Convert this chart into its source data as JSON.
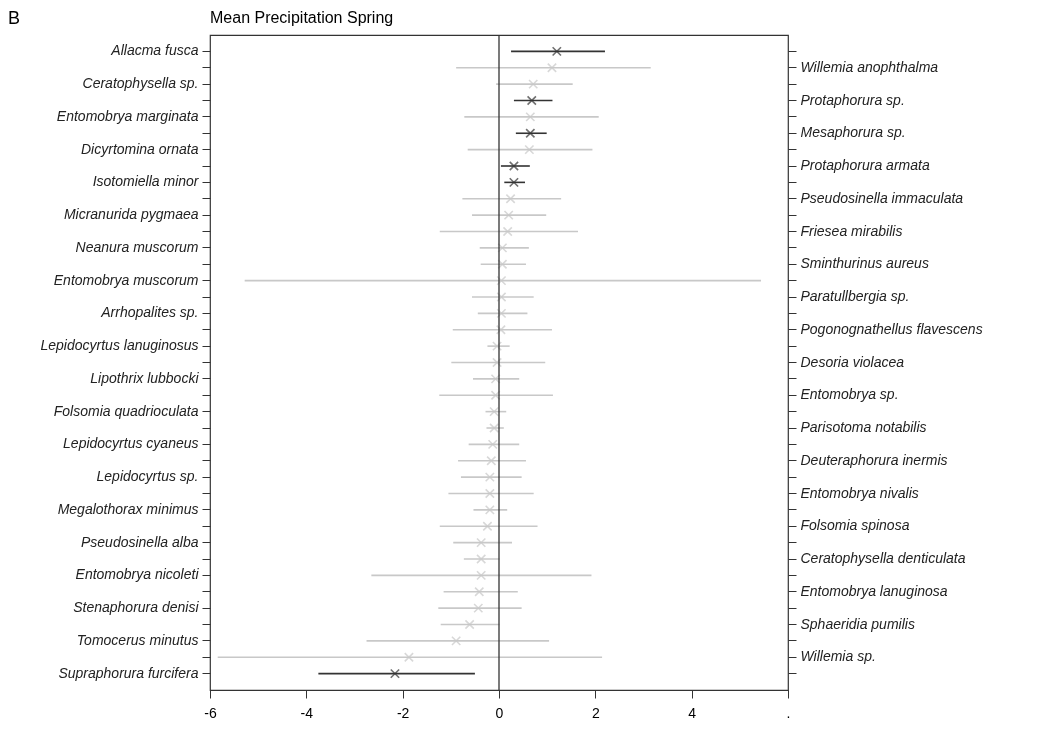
{
  "chart_data": {
    "type": "scatter",
    "orientation": "horizontal",
    "title": "Mean Precipitation Spring",
    "annotations": [
      "B"
    ],
    "categories": [
      "Allacma fusca",
      null,
      "Ceratophysella  sp.",
      null,
      "Entomobrya marginata",
      null,
      "Dicyrtomina ornata",
      null,
      "Isotomiella minor",
      null,
      "Micranurida pygmaea",
      null,
      "Neanura muscorum",
      null,
      "Entomobrya muscorum",
      null,
      "Arrhopalites  sp.",
      null,
      "Lepidocyrtus lanuginosus",
      null,
      "Lipothrix lubbocki",
      null,
      "Folsomia quadrioculata",
      null,
      "Lepidocyrtus cyaneus",
      null,
      "Lepidocyrtus  sp.",
      null,
      "Megalothorax minimus",
      null,
      "Pseudosinella alba",
      null,
      "Entomobrya nicoleti",
      null,
      "Stenaphorura denisi",
      null,
      "Tomocerus minutus",
      null,
      "Supraphorura furcifera"
    ],
    "y2_categories": [
      null,
      "Willemia anophthalma",
      null,
      "Protaphorura  sp.",
      null,
      "Mesaphorura  sp.",
      null,
      "Protaphorura armata",
      null,
      "Pseudosinella immaculata",
      null,
      "Friesea mirabilis",
      null,
      "Sminthurinus aureus",
      null,
      "Paratullbergia  sp.",
      null,
      "Pogonognathellus flavescens",
      null,
      "Desoria violacea",
      null,
      "Entomobrya  sp.",
      null,
      "Parisotoma notabilis",
      null,
      "Deuteraphorura inermis",
      null,
      "Entomobrya nivalis",
      null,
      "Folsomia spinosa",
      null,
      "Ceratophysella denticulata",
      null,
      "Entomobrya lanuginosa",
      null,
      "Sphaeridia pumilis",
      null,
      "Willemia  sp.",
      null
    ],
    "values": [
      1.2,
      1.1,
      0.71,
      0.68,
      0.65,
      0.65,
      0.63,
      0.31,
      0.31,
      0.24,
      0.2,
      0.18,
      0.07,
      0.07,
      0.05,
      0.05,
      0.05,
      0.04,
      -0.04,
      -0.04,
      -0.07,
      -0.07,
      -0.1,
      -0.1,
      -0.13,
      -0.16,
      -0.19,
      -0.19,
      -0.19,
      -0.24,
      -0.37,
      -0.37,
      -0.37,
      -0.41,
      -0.43,
      -0.61,
      -0.89,
      -1.87,
      -2.16
    ],
    "errors": [
      [
        0.25,
        2.2
      ],
      [
        -0.89,
        3.15
      ],
      [
        -0.06,
        1.53
      ],
      [
        0.31,
        1.11
      ],
      [
        -0.72,
        2.07
      ],
      [
        0.35,
        0.99
      ],
      [
        -0.65,
        1.94
      ],
      [
        0.04,
        0.64
      ],
      [
        0.11,
        0.54
      ],
      [
        -0.76,
        1.29
      ],
      [
        -0.56,
        0.98
      ],
      [
        -1.23,
        1.64
      ],
      [
        -0.4,
        0.62
      ],
      [
        -0.38,
        0.56
      ],
      [
        -5.28,
        5.44
      ],
      [
        -0.56,
        0.72
      ],
      [
        -0.44,
        0.59
      ],
      [
        -0.96,
        1.1
      ],
      [
        -0.24,
        0.22
      ],
      [
        -0.99,
        0.96
      ],
      [
        -0.54,
        0.42
      ],
      [
        -1.24,
        1.12
      ],
      [
        -0.28,
        0.15
      ],
      [
        -0.26,
        0.1
      ],
      [
        -0.63,
        0.42
      ],
      [
        -0.85,
        0.56
      ],
      [
        -0.79,
        0.47
      ],
      [
        -1.05,
        0.72
      ],
      [
        -0.53,
        0.17
      ],
      [
        -1.23,
        0.8
      ],
      [
        -0.95,
        0.27
      ],
      [
        -0.73,
        0.01
      ],
      [
        -2.65,
        1.92
      ],
      [
        -1.15,
        0.39
      ],
      [
        -1.26,
        0.47
      ],
      [
        -1.21,
        0.01
      ],
      [
        -2.75,
        1.04
      ],
      [
        -5.84,
        2.14
      ],
      [
        -3.75,
        -0.5
      ]
    ],
    "colors": [
      "#333333",
      "#c8c8c8",
      "#c8c8c8",
      "#333333",
      "#c8c8c8",
      "#333333",
      "#c8c8c8",
      "#333333",
      "#333333",
      "#c8c8c8",
      "#c8c8c8",
      "#c8c8c8",
      "#c8c8c8",
      "#c8c8c8",
      "#c8c8c8",
      "#c8c8c8",
      "#c8c8c8",
      "#c8c8c8",
      "#c8c8c8",
      "#c8c8c8",
      "#c8c8c8",
      "#c8c8c8",
      "#c8c8c8",
      "#c8c8c8",
      "#c8c8c8",
      "#c8c8c8",
      "#c8c8c8",
      "#c8c8c8",
      "#c8c8c8",
      "#c8c8c8",
      "#c8c8c8",
      "#c8c8c8",
      "#c8c8c8",
      "#c8c8c8",
      "#c8c8c8",
      "#c8c8c8",
      "#c8c8c8",
      "#c8c8c8",
      "#333333"
    ],
    "xlim": [
      -6,
      6
    ],
    "xticks": [
      -6,
      -4,
      -2,
      0,
      2,
      4,
      {
        "value": 6,
        "label": "."
      }
    ],
    "ref_lines": [
      {
        "axis": "x",
        "value": 0,
        "color": "#333333"
      }
    ],
    "marker": "cross",
    "grid": false
  }
}
